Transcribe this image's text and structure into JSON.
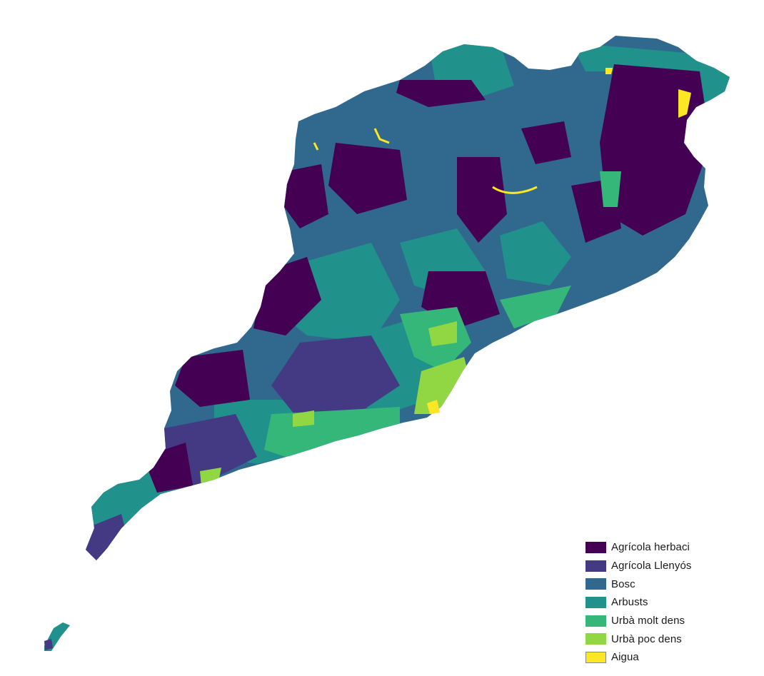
{
  "map": {
    "classes": [
      {
        "key": "agri_herb",
        "label": "Agrícola herbaci",
        "color": "#440154"
      },
      {
        "key": "agri_llen",
        "label": "Agrícola Llenyós",
        "color": "#443983"
      },
      {
        "key": "bosc",
        "label": "Bosc",
        "color": "#31688e"
      },
      {
        "key": "arbusts",
        "label": "Arbusts",
        "color": "#21918c"
      },
      {
        "key": "urba_molt",
        "label": "Urbà molt dens",
        "color": "#35b779"
      },
      {
        "key": "urba_poc",
        "label": "Urbà poc dens",
        "color": "#90d743"
      },
      {
        "key": "aigua",
        "label": "Aigua",
        "color": "#fde725"
      }
    ]
  }
}
